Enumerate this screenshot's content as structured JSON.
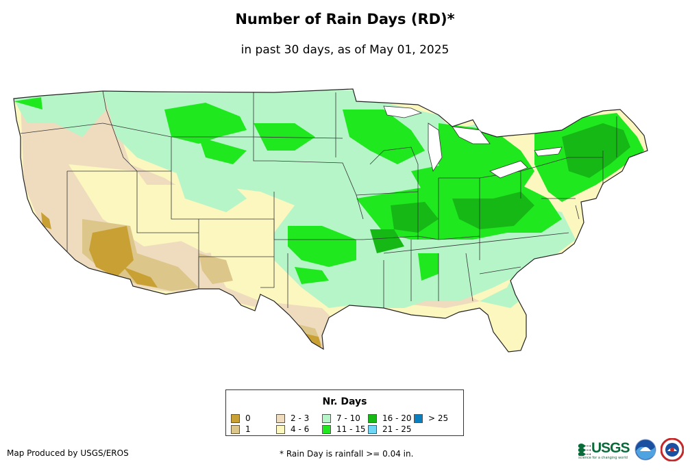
{
  "header": {
    "title": "Number of Rain Days (RD)*",
    "subtitle": "in past 30 days, as of May 01, 2025"
  },
  "legend": {
    "title": "Nr. Days",
    "items": [
      {
        "label": "0",
        "color": "#c9a033"
      },
      {
        "label": "1",
        "color": "#dcc68a"
      },
      {
        "label": "2 - 3",
        "color": "#efdcbe"
      },
      {
        "label": "4 - 6",
        "color": "#fbf7bf"
      },
      {
        "label": "7 - 10",
        "color": "#b5f5c8"
      },
      {
        "label": "11 - 15",
        "color": "#1fe81f"
      },
      {
        "label": "16 - 20",
        "color": "#16b816"
      },
      {
        "label": "21 - 25",
        "color": "#6fd7f5"
      },
      {
        "label": "> 25",
        "color": "#0a7fc0"
      }
    ]
  },
  "map": {
    "name": "Contiguous United States",
    "layer": "rain days in past 30 days"
  },
  "footer": {
    "producer": "Map Produced by USGS/EROS",
    "note": "* Rain Day is rainfall >= 0.04 in."
  },
  "logos": {
    "usgs_text": "USGS",
    "usgs_tagline": "science for a changing world"
  }
}
